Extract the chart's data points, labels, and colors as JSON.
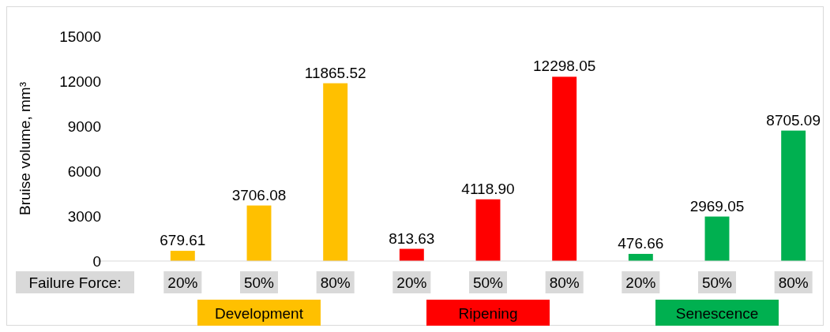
{
  "chart_data": {
    "type": "bar",
    "ylabel": "Bruise volume, mm³",
    "xlabel": "Failure Force:",
    "categories": [
      "20%",
      "50%",
      "80%",
      "20%",
      "50%",
      "80%",
      "20%",
      "50%",
      "80%"
    ],
    "series": [
      {
        "name": "Development",
        "color": "#ffc000",
        "values": [
          679.61,
          3706.08,
          11865.52,
          null,
          null,
          null,
          null,
          null,
          null
        ],
        "value_labels": [
          "679.61",
          "3706.08",
          "11865.52",
          null,
          null,
          null,
          null,
          null,
          null
        ]
      },
      {
        "name": "Ripening",
        "color": "#ff0000",
        "values": [
          null,
          null,
          null,
          813.63,
          4118.9,
          12298.05,
          null,
          null,
          null
        ],
        "value_labels": [
          null,
          null,
          null,
          "813.63",
          "4118.90",
          "12298.05",
          null,
          null,
          null
        ]
      },
      {
        "name": "Senescence",
        "color": "#00b050",
        "values": [
          null,
          null,
          null,
          null,
          null,
          null,
          476.66,
          2969.05,
          8705.09
        ],
        "value_labels": [
          null,
          null,
          null,
          null,
          null,
          null,
          "476.66",
          "2969.05",
          "8705.09"
        ]
      }
    ],
    "ylim": [
      0,
      15000
    ],
    "yticks": [
      0,
      3000,
      6000,
      9000,
      12000,
      15000
    ],
    "grid": false,
    "legend": "bottom"
  }
}
